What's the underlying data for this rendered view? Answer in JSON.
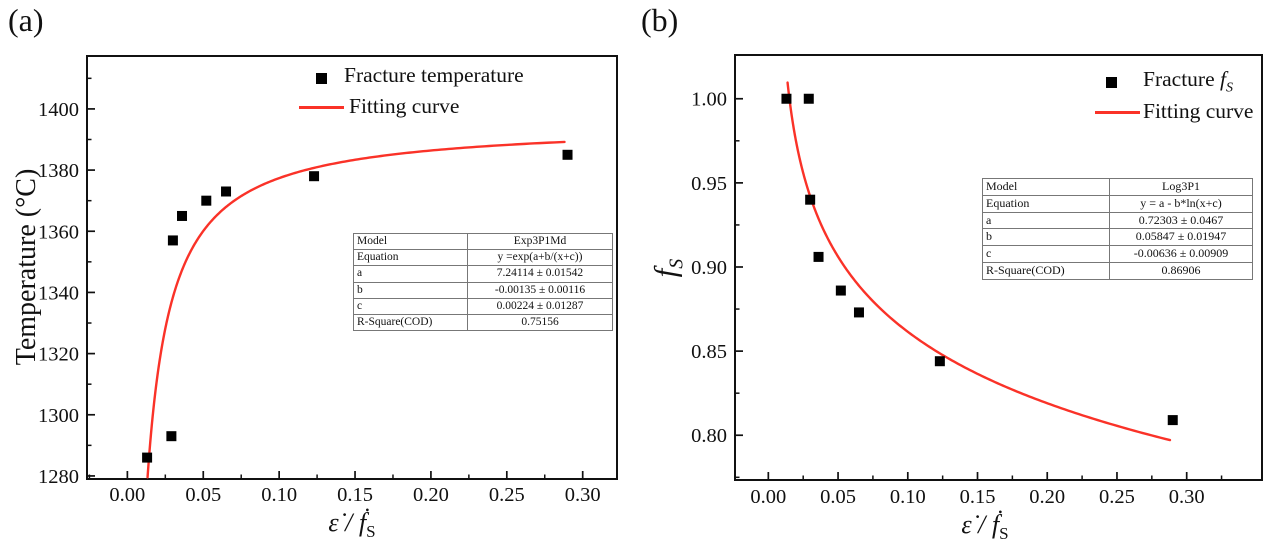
{
  "colors": {
    "curve": "#fa3228",
    "marker": "#000000",
    "axis": "#111111"
  },
  "chart_data": [
    {
      "id": "panel-a",
      "panel_label": "(a)",
      "type": "scatter",
      "title": "",
      "xlabel": {
        "text": "ε̇ / ḟ",
        "sub": "S"
      },
      "ylabel": {
        "text": "Temperature (°C)",
        "sub": ""
      },
      "legend": [
        {
          "marker": "square",
          "prefix": "Fracture temperature",
          "symbol": "",
          "symbol_sub": ""
        },
        {
          "marker": "line",
          "prefix": "Fitting curve",
          "symbol": "",
          "symbol_sub": ""
        }
      ],
      "legend_position": "top-right-inside",
      "grid": false,
      "xlim": [
        -0.0266,
        0.3226
      ],
      "ylim": [
        1279,
        1417.3
      ],
      "x_tick_labels": [
        "0.00",
        "0.05",
        "0.10",
        "0.15",
        "0.20",
        "0.25",
        "0.30"
      ],
      "y_tick_labels": [
        "1280",
        "1300",
        "1320",
        "1340",
        "1360",
        "1380",
        "1400"
      ],
      "x_minor_step": 0.025,
      "y_minor_step": 10,
      "points_x": [
        0.013,
        0.029,
        0.03,
        0.036,
        0.052,
        0.065,
        0.123,
        0.29
      ],
      "points_y": [
        1286,
        1293,
        1357,
        1365,
        1370,
        1373,
        1378,
        1385
      ],
      "fit": {
        "model": "Exp3P1Md",
        "equation": "y =exp(a+b/(x+c))",
        "a": 7.24114,
        "b": -0.00135,
        "c": 0.00224,
        "x_start": 0.0133,
        "x_end": 0.288
      },
      "inset_table": {
        "rows": [
          [
            "Model",
            "Exp3P1Md"
          ],
          [
            "Equation",
            "y =exp(a+b/(x+c))"
          ],
          [
            "a",
            "7.24114 ± 0.01542"
          ],
          [
            "b",
            "-0.00135 ± 0.00116"
          ],
          [
            "c",
            "0.00224 ± 0.01287"
          ],
          [
            "R-Square(COD)",
            "0.75156"
          ]
        ]
      }
    },
    {
      "id": "panel-b",
      "panel_label": "(b)",
      "type": "scatter",
      "title": "",
      "xlabel": {
        "text": "ε̇ / ḟ",
        "sub": "S"
      },
      "ylabel": {
        "text": "f",
        "sub": "S"
      },
      "legend": [
        {
          "marker": "square",
          "prefix": "Fracture ",
          "symbol": "f",
          "symbol_sub": "S"
        },
        {
          "marker": "line",
          "prefix": "Fitting curve",
          "symbol": "",
          "symbol_sub": ""
        }
      ],
      "legend_position": "top-right-inside",
      "grid": false,
      "xlim": [
        -0.0239,
        0.354
      ],
      "ylim": [
        0.7734,
        1.026
      ],
      "x_tick_labels": [
        "0.00",
        "0.05",
        "0.10",
        "0.15",
        "0.20",
        "0.25",
        "0.30"
      ],
      "y_tick_labels": [
        "0.80",
        "0.85",
        "0.90",
        "0.95",
        "1.00"
      ],
      "x_minor_step": 0.025,
      "y_minor_step": 0.025,
      "points_x": [
        0.013,
        0.029,
        0.03,
        0.036,
        0.052,
        0.065,
        0.123,
        0.29
      ],
      "points_y": [
        1.0,
        1.0,
        0.94,
        0.906,
        0.886,
        0.873,
        0.844,
        0.809
      ],
      "fit": {
        "model": "Log3P1",
        "equation": "y = a - b*ln(x+c)",
        "a": 0.72303,
        "b": 0.05847,
        "c": -0.00636,
        "x_start": 0.0138,
        "x_end": 0.288
      },
      "inset_table": {
        "rows": [
          [
            "Model",
            "Log3P1"
          ],
          [
            "Equation",
            "y = a - b*ln(x+c)"
          ],
          [
            "a",
            "0.72303 ± 0.0467"
          ],
          [
            "b",
            "0.05847 ± 0.01947"
          ],
          [
            "c",
            "-0.00636 ± 0.00909"
          ],
          [
            "R-Square(COD)",
            "0.86906"
          ]
        ]
      }
    }
  ]
}
